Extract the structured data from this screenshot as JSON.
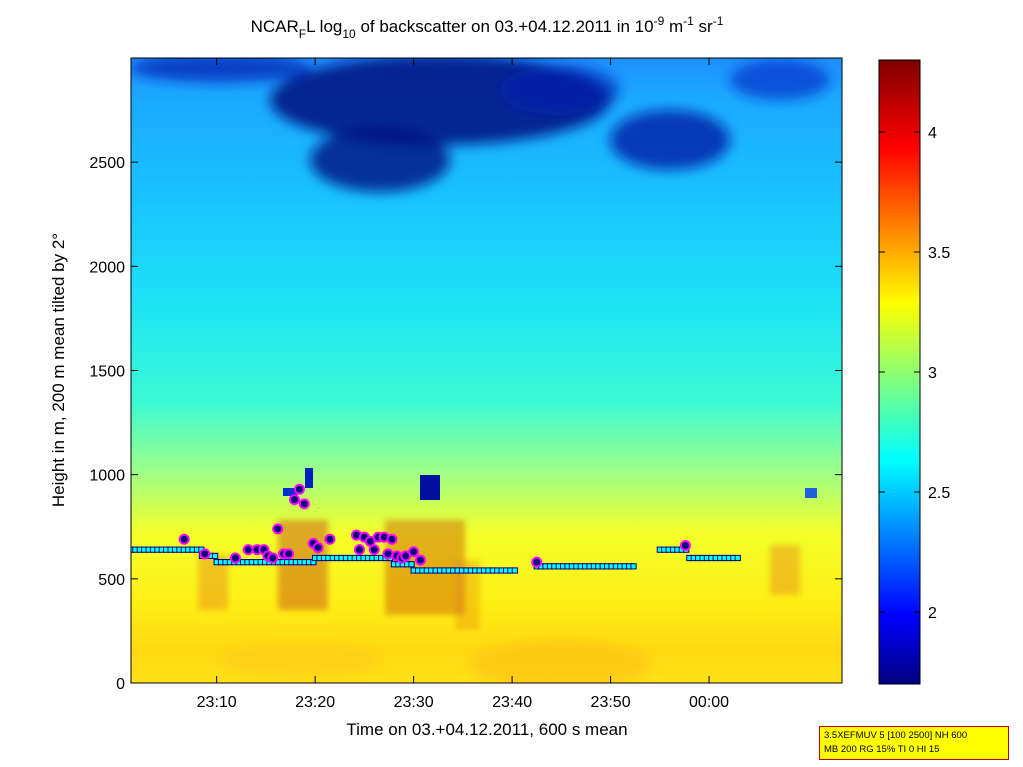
{
  "chart_data": {
    "type": "heatmap",
    "title": {
      "text_a": "NCAR",
      "sub_f": "F",
      "text_b": "L log",
      "sub_10": "10",
      "text_c": " of backscatter on 03.+04.12.2011 in 10",
      "sup_m9": "-9",
      "text_d": " m",
      "sup_m1a": "-1",
      "text_e": " sr",
      "sup_m1b": "-1"
    },
    "xlabel": "Time on 03.+04.12.2011, 600 s mean",
    "ylabel": "Height in m, 200 m mean tilted by 2°",
    "xlim_minutes": [
      1.3,
      73.5
    ],
    "ylim": [
      0,
      3000
    ],
    "x_ticks": [
      {
        "label": "23:10",
        "value": 10
      },
      {
        "label": "23:20",
        "value": 20
      },
      {
        "label": "23:30",
        "value": 30
      },
      {
        "label": "23:40",
        "value": 40
      },
      {
        "label": "23:50",
        "value": 50
      },
      {
        "label": "00:00",
        "value": 60
      }
    ],
    "y_ticks": [
      0,
      500,
      1000,
      1500,
      2000,
      2500
    ],
    "colorbar": {
      "colormap": "jet",
      "range": [
        1.7,
        4.3
      ],
      "ticks": [
        "2",
        "2.5",
        "3",
        "3.5",
        "4"
      ]
    },
    "grid": false,
    "layer_line_series": [
      {
        "x0": 1.3,
        "x1": 8.5,
        "y": 640
      },
      {
        "x0": 8.5,
        "x1": 10.0,
        "y": 610
      },
      {
        "x0": 10.0,
        "x1": 20.0,
        "y": 580
      },
      {
        "x0": 20.0,
        "x1": 28.0,
        "y": 600
      },
      {
        "x0": 28.0,
        "x1": 30.0,
        "y": 570
      },
      {
        "x0": 30.0,
        "x1": 40.5,
        "y": 540
      },
      {
        "x0": 42.5,
        "x1": 52.5,
        "y": 560
      },
      {
        "x0": 55.0,
        "x1": 58.0,
        "y": 640
      },
      {
        "x0": 58.0,
        "x1": 63.0,
        "y": 600
      }
    ],
    "layer_top_points_x_min": [
      6.7,
      8.8,
      11.9,
      13.2,
      14.1,
      14.8,
      15.2,
      15.7,
      16.2,
      16.8,
      17.3,
      17.9,
      18.4,
      18.9,
      19.8,
      20.3,
      21.5,
      24.2,
      24.5,
      25.0,
      25.6,
      26.0,
      26.4,
      27.0,
      27.4,
      27.8,
      28.3,
      28.8,
      29.2,
      30.0,
      30.7,
      42.5,
      57.6
    ],
    "layer_top_points_y_m": [
      690,
      620,
      600,
      640,
      640,
      640,
      610,
      600,
      740,
      620,
      620,
      880,
      930,
      860,
      670,
      650,
      690,
      710,
      640,
      700,
      680,
      640,
      700,
      700,
      620,
      690,
      610,
      600,
      610,
      630,
      590,
      580,
      660
    ]
  },
  "info_box": {
    "line1": "3.5XEFMUV 5 [100 2500] NH 600",
    "line2": "MB 200 RG 15% TI 0 HI 15",
    "bg_color": "#ffff00",
    "border_color": "#c00000"
  },
  "colors": {
    "line_fill": "#00ffff",
    "line_edge": "#000080",
    "point_fill": "#000080",
    "point_edge": "#ff00ff"
  }
}
